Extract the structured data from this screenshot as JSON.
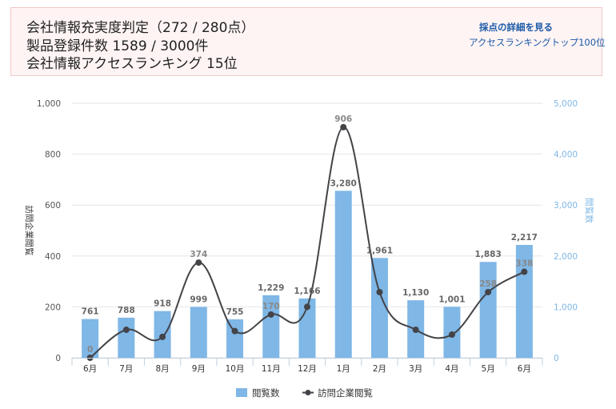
{
  "info": {
    "line1": "会社情報充実度判定（272 / 280点）",
    "line2": "製品登録件数 1589 / 3000件",
    "line3": "会社情報アクセスランキング 15位",
    "detail_link": "採点の詳細を見る",
    "ranking_link": "アクセスランキングトップ100位"
  },
  "colors": {
    "bar": "#7fb7e6",
    "line": "#434348",
    "right_axis": "#7fb7e6",
    "box_bg": "#fff4f4",
    "box_border": "#f0c8c8",
    "link": "#1c5aa8"
  },
  "chart_data": {
    "type": "bar",
    "categories": [
      "6月",
      "7月",
      "8月",
      "9月",
      "10月",
      "11月",
      "12月",
      "1月",
      "2月",
      "3月",
      "4月",
      "5月",
      "6月"
    ],
    "series": [
      {
        "name": "閲覧数",
        "type": "bar",
        "axis": "right",
        "values": [
          761,
          788,
          918,
          999,
          755,
          1229,
          1166,
          3280,
          1961,
          1130,
          1001,
          1883,
          2217
        ],
        "labels": [
          "761",
          "788",
          "918",
          "999",
          "755",
          "1,229",
          "1,166",
          "3,280",
          "1,961",
          "1,130",
          "1,001",
          "1,883",
          "2,217"
        ]
      },
      {
        "name": "訪問企業閲覧",
        "type": "line",
        "axis": "left",
        "values": [
          0,
          110,
          82,
          374,
          105,
          170,
          200,
          906,
          258,
          110,
          91,
          258,
          338
        ],
        "labels": [
          "0",
          "",
          "",
          "374",
          "",
          "170",
          "",
          "906",
          "",
          "",
          "",
          "258",
          "338"
        ]
      }
    ],
    "left_axis": {
      "title": "訪問企業閲覧",
      "ylim": [
        0,
        1000
      ],
      "ticks": [
        0,
        200,
        400,
        600,
        800,
        1000
      ],
      "tick_labels": [
        "0",
        "200",
        "400",
        "600",
        "800",
        "1,000"
      ]
    },
    "right_axis": {
      "title": "閲覧数",
      "ylim": [
        0,
        5000
      ],
      "ticks": [
        0,
        1000,
        2000,
        3000,
        4000,
        5000
      ],
      "tick_labels": [
        "0",
        "1,000",
        "2,000",
        "3,000",
        "4,000",
        "5,000"
      ]
    },
    "grid": true,
    "legend": "bottom"
  }
}
